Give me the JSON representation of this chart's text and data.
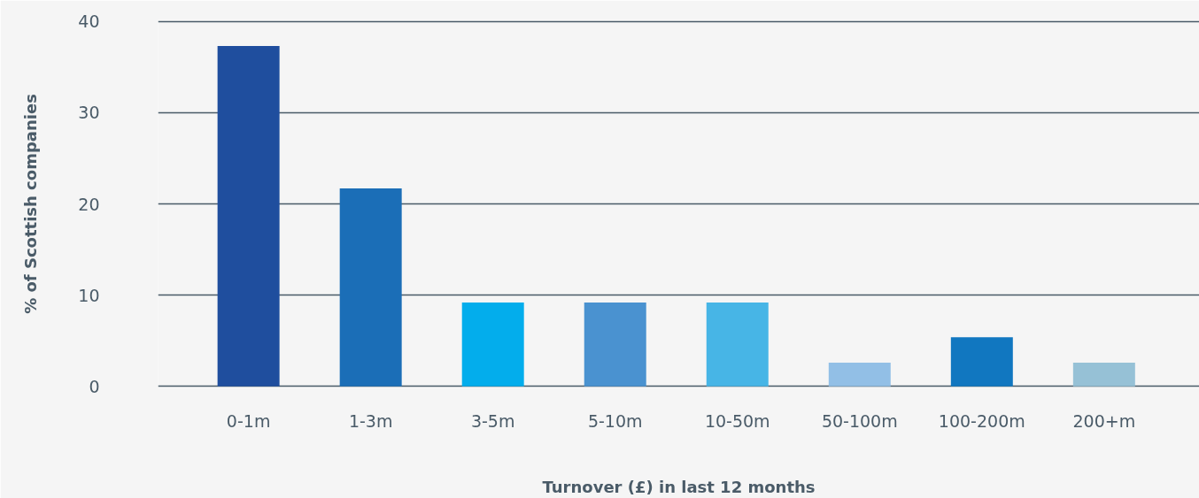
{
  "chart_data": {
    "type": "bar",
    "xlabel": "Turnover (£) in last 12 months",
    "ylabel": "% of Scottish companies",
    "categories": [
      "0-1m",
      "1-3m",
      "3-5m",
      "5-10m",
      "10-50m",
      "50-100m",
      "100-200m",
      "200+m"
    ],
    "values": [
      37.3,
      21.7,
      9.2,
      9.2,
      9.2,
      2.6,
      5.4,
      2.6
    ],
    "colors": [
      "#1f4e9e",
      "#1b6eb7",
      "#03adec",
      "#4a92d0",
      "#47b5e6",
      "#92bfe6",
      "#1177c0",
      "#96c1d6"
    ],
    "ylim": [
      0,
      40
    ],
    "yticks": [
      0,
      10,
      20,
      30,
      40
    ],
    "grid": "y"
  }
}
